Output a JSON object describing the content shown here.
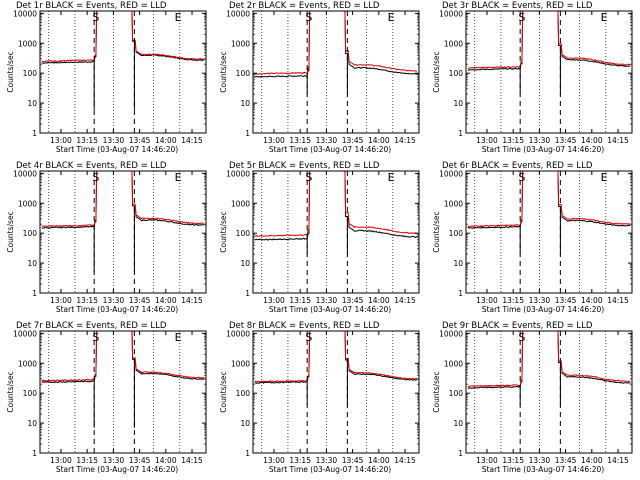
{
  "figure": {
    "background": "#ffffff",
    "colors": {
      "events": "#000000",
      "lld": "#e00000",
      "axes": "#000000"
    }
  },
  "chart_data": [
    {
      "type": "line",
      "title": "Det 1r BLACK = Events, RED = LLD",
      "xlabel": "Start Time (03-Aug-07 14:46:20)",
      "ylabel": "Counts/sec",
      "yscale": "log",
      "ylim": [
        1,
        12000
      ],
      "x_ticks": [
        "13:00",
        "13:15",
        "13:30",
        "13:45",
        "14:00",
        "14:15"
      ],
      "y_ticks": [
        "1",
        "10",
        "100",
        "1000",
        "10000"
      ],
      "markers": [
        {
          "label": "S",
          "x": "13:22"
        },
        {
          "label": "E",
          "x": "14:07"
        }
      ],
      "marker_E_shown": true,
      "series": [
        {
          "name": "Events",
          "color": "#000000",
          "pre": 220,
          "post": 390,
          "end": 280,
          "dip": 6
        },
        {
          "name": "LLD",
          "color": "#e00000",
          "pre": 250,
          "post": 420,
          "end": 300
        }
      ],
      "peak": 12000
    },
    {
      "type": "line",
      "title": "Det 2r BLACK = Events, RED = LLD",
      "xlabel": "Start Time (03-Aug-07 14:46:20)",
      "ylabel": "Counts/sec",
      "yscale": "log",
      "ylim": [
        1,
        12000
      ],
      "x_ticks": [
        "13:00",
        "13:15",
        "13:30",
        "13:45",
        "14:00",
        "14:15"
      ],
      "y_ticks": [
        "1",
        "10",
        "100",
        "1000",
        "10000"
      ],
      "markers": [
        {
          "label": "S",
          "x": "13:22"
        },
        {
          "label": "E",
          "x": "14:07"
        }
      ],
      "marker_E_shown": true,
      "series": [
        {
          "name": "Events",
          "color": "#000000",
          "pre": 75,
          "post": 150,
          "end": 95,
          "dip": 20
        },
        {
          "name": "LLD",
          "color": "#e00000",
          "pre": 95,
          "post": 190,
          "end": 120
        }
      ],
      "peak": 12000
    },
    {
      "type": "line",
      "title": "Det 3r BLACK = Events, RED = LLD",
      "xlabel": "Start Time (03-Aug-07 14:46:20)",
      "ylabel": "Counts/sec",
      "yscale": "log",
      "ylim": [
        1,
        12000
      ],
      "x_ticks": [
        "13:00",
        "13:15",
        "13:30",
        "13:45",
        "14:00",
        "14:15"
      ],
      "y_ticks": [
        "1",
        "10",
        "100",
        "1000",
        "10000"
      ],
      "markers": [
        {
          "label": "S",
          "x": "13:22"
        },
        {
          "label": "E",
          "x": "14:07"
        }
      ],
      "marker_E_shown": true,
      "series": [
        {
          "name": "Events",
          "color": "#000000",
          "pre": 130,
          "post": 280,
          "end": 170,
          "dip": 20
        },
        {
          "name": "LLD",
          "color": "#e00000",
          "pre": 150,
          "post": 320,
          "end": 190
        }
      ],
      "peak": 12000
    },
    {
      "type": "line",
      "title": "Det 4r BLACK = Events, RED = LLD",
      "xlabel": "Start Time (03-Aug-07 14:46:20)",
      "ylabel": "Counts/sec",
      "yscale": "log",
      "ylim": [
        1,
        12000
      ],
      "x_ticks": [
        "13:00",
        "13:15",
        "13:30",
        "13:45",
        "14:00",
        "14:15"
      ],
      "y_ticks": [
        "1",
        "10",
        "100",
        "1000",
        "10000"
      ],
      "markers": [
        {
          "label": "S",
          "x": "13:22"
        },
        {
          "label": "E",
          "x": "14:07"
        }
      ],
      "marker_E_shown": true,
      "series": [
        {
          "name": "Events",
          "color": "#000000",
          "pre": 150,
          "post": 270,
          "end": 190,
          "dip": 5
        },
        {
          "name": "LLD",
          "color": "#e00000",
          "pre": 170,
          "post": 310,
          "end": 215
        }
      ],
      "peak": 12000
    },
    {
      "type": "line",
      "title": "Det 5r BLACK = Events, RED = LLD",
      "xlabel": "Start Time (03-Aug-07 14:46:20)",
      "ylabel": "Counts/sec",
      "yscale": "log",
      "ylim": [
        1,
        12000
      ],
      "x_ticks": [
        "13:00",
        "13:15",
        "13:30",
        "13:45",
        "14:00",
        "14:15"
      ],
      "y_ticks": [
        "1",
        "10",
        "100",
        "1000",
        "10000"
      ],
      "markers": [
        {
          "label": "S",
          "x": "13:22"
        },
        {
          "label": "E",
          "x": "14:07"
        }
      ],
      "marker_E_shown": true,
      "series": [
        {
          "name": "Events",
          "color": "#000000",
          "pre": 60,
          "post": 120,
          "end": 75,
          "dip": 20
        },
        {
          "name": "LLD",
          "color": "#e00000",
          "pre": 80,
          "post": 160,
          "end": 100
        }
      ],
      "peak": 12000
    },
    {
      "type": "line",
      "title": "Det 6r BLACK = Events, RED = LLD",
      "xlabel": "Start Time (03-Aug-07 14:46:20)",
      "ylabel": "Counts/sec",
      "yscale": "log",
      "ylim": [
        1,
        12000
      ],
      "x_ticks": [
        "13:00",
        "13:15",
        "13:30",
        "13:45",
        "14:00",
        "14:15"
      ],
      "y_ticks": [
        "1",
        "10",
        "100",
        "1000",
        "10000"
      ],
      "markers": [
        {
          "label": "S",
          "x": "13:22"
        },
        {
          "label": "E",
          "x": "14:07"
        }
      ],
      "marker_E_shown": true,
      "series": [
        {
          "name": "Events",
          "color": "#000000",
          "pre": 150,
          "post": 260,
          "end": 180,
          "dip": 20
        },
        {
          "name": "LLD",
          "color": "#e00000",
          "pre": 170,
          "post": 300,
          "end": 205
        }
      ],
      "peak": 12000
    },
    {
      "type": "line",
      "title": "Det 7r BLACK = Events, RED = LLD",
      "xlabel": "Start Time (03-Aug-07 14:46:20)",
      "ylabel": "Counts/sec",
      "yscale": "log",
      "ylim": [
        1,
        12000
      ],
      "x_ticks": [
        "13:00",
        "13:15",
        "13:30",
        "13:45",
        "14:00",
        "14:15"
      ],
      "y_ticks": [
        "1",
        "10",
        "100",
        "1000",
        "10000"
      ],
      "markers": [
        {
          "label": "S",
          "x": "13:22"
        },
        {
          "label": "E",
          "x": "14:07"
        }
      ],
      "marker_E_shown": true,
      "series": [
        {
          "name": "Events",
          "color": "#000000",
          "pre": 230,
          "post": 450,
          "end": 300,
          "dip": 7
        },
        {
          "name": "LLD",
          "color": "#e00000",
          "pre": 260,
          "post": 500,
          "end": 330
        }
      ],
      "peak": 12000
    },
    {
      "type": "line",
      "title": "Det 8r BLACK = Events, RED = LLD",
      "xlabel": "Start Time (03-Aug-07 14:46:20)",
      "ylabel": "Counts/sec",
      "yscale": "log",
      "ylim": [
        1,
        12000
      ],
      "x_ticks": [
        "13:00",
        "13:15",
        "13:30",
        "13:45",
        "14:00",
        "14:15"
      ],
      "y_ticks": [
        "1",
        "10",
        "100",
        "1000",
        "10000"
      ],
      "markers": [
        {
          "label": "S",
          "x": "13:22"
        }
      ],
      "marker_E_shown": false,
      "series": [
        {
          "name": "Events",
          "color": "#000000",
          "pre": 220,
          "post": 430,
          "end": 280,
          "dip": 40
        },
        {
          "name": "LLD",
          "color": "#e00000",
          "pre": 240,
          "post": 480,
          "end": 300
        }
      ],
      "peak": 12000
    },
    {
      "type": "line",
      "title": "Det 9r BLACK = Events, RED = LLD",
      "xlabel": "Start Time (03-Aug-07 14:46:20)",
      "ylabel": "Counts/sec",
      "yscale": "log",
      "ylim": [
        1,
        12000
      ],
      "x_ticks": [
        "13:00",
        "13:15",
        "13:30",
        "13:45",
        "14:00",
        "14:15"
      ],
      "y_ticks": [
        "1",
        "10",
        "100",
        "1000",
        "10000"
      ],
      "markers": [
        {
          "label": "S",
          "x": "13:22"
        }
      ],
      "marker_E_shown": false,
      "series": [
        {
          "name": "Events",
          "color": "#000000",
          "pre": 150,
          "post": 350,
          "end": 220,
          "dip": 40
        },
        {
          "name": "LLD",
          "color": "#e00000",
          "pre": 170,
          "post": 400,
          "end": 250
        }
      ],
      "peak": 12000
    }
  ]
}
